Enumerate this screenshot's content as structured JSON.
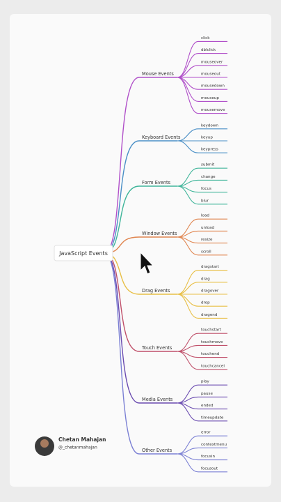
{
  "root": "JavaScript Events",
  "branches": [
    {
      "label": "Mouse Events",
      "color": "#b04fc9",
      "children": [
        "click",
        "dblclick",
        "mouseover",
        "mouseout",
        "mousedown",
        "mouseup",
        "mousemove"
      ]
    },
    {
      "label": "Keyboard Events",
      "color": "#4a8fc6",
      "children": [
        "keydown",
        "keyup",
        "keypress"
      ]
    },
    {
      "label": "Form Events",
      "color": "#3fb59a",
      "children": [
        "submit",
        "change",
        "focus",
        "blur"
      ]
    },
    {
      "label": "Window Events",
      "color": "#e0854f",
      "children": [
        "load",
        "unload",
        "resize",
        "scroll"
      ]
    },
    {
      "label": "Drag Events",
      "color": "#e8bf45",
      "children": [
        "dragstart",
        "drag",
        "dragover",
        "drop",
        "dragend"
      ]
    },
    {
      "label": "Touch Events",
      "color": "#c0506a",
      "children": [
        "touchstart",
        "touchmove",
        "touchend",
        "touchcancel"
      ]
    },
    {
      "label": "Media Events",
      "color": "#6a4bb0",
      "children": [
        "play",
        "pause",
        "ended",
        "timeupdate"
      ]
    },
    {
      "label": "Other Events",
      "color": "#7b80d4",
      "children": [
        "error",
        "contextmenu",
        "focusin",
        "focusout"
      ]
    }
  ],
  "author": {
    "name": "Chetan Mahajan",
    "handle": "@_chetanmahajan"
  }
}
